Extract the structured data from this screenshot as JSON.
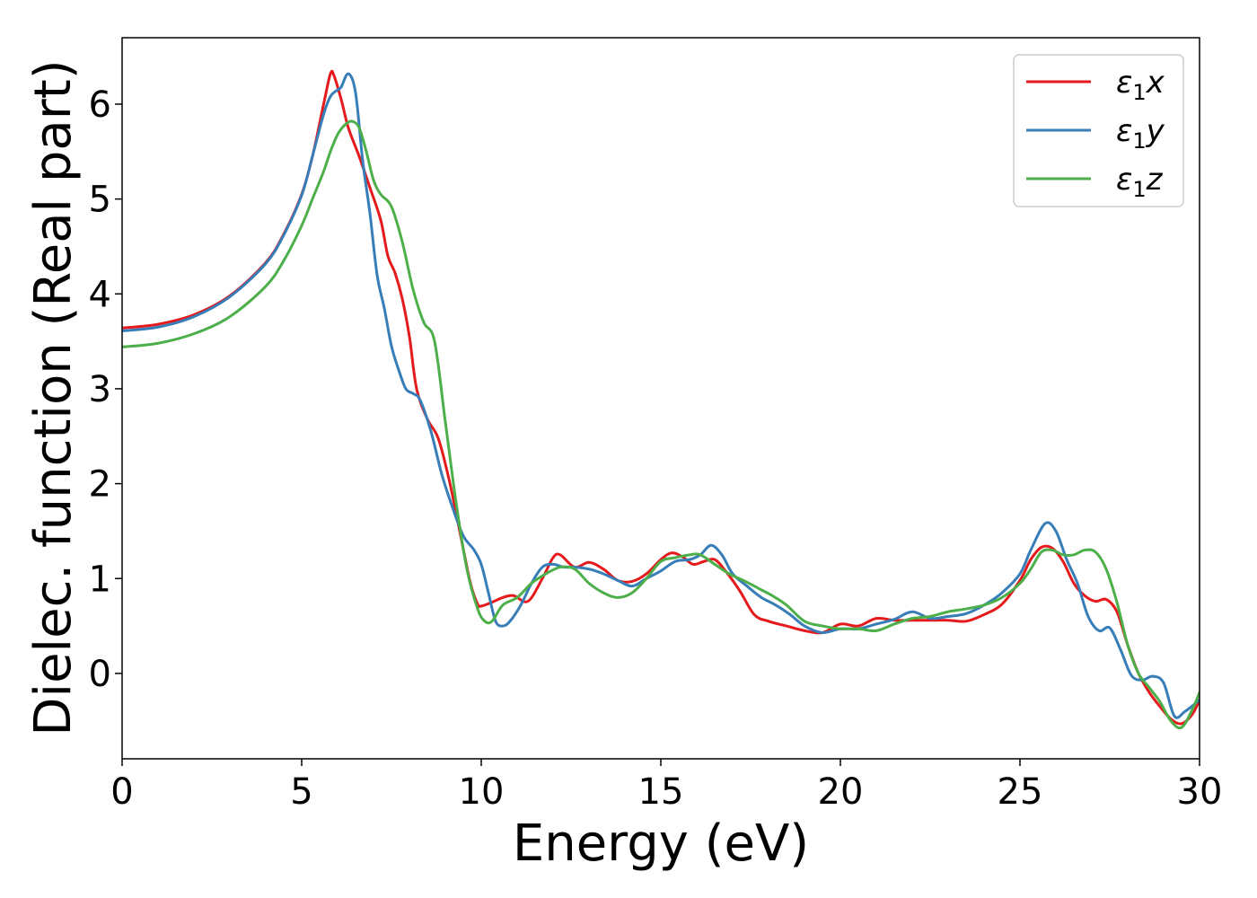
{
  "chart_data": {
    "type": "line",
    "title": "",
    "xlabel": "Energy (eV)",
    "ylabel": "Dielec. function (Real part)",
    "xlim": [
      0,
      30
    ],
    "ylim": [
      -0.9,
      6.7
    ],
    "xticks": [
      0,
      5,
      10,
      15,
      20,
      25,
      30
    ],
    "xtick_labels": [
      "0",
      "5",
      "10",
      "15",
      "20",
      "25",
      "30"
    ],
    "yticks": [
      0,
      1,
      2,
      3,
      4,
      5,
      6
    ],
    "ytick_labels": [
      "0",
      "1",
      "2",
      "3",
      "4",
      "5",
      "6"
    ],
    "grid": false,
    "legend_position": "top-right",
    "series": [
      {
        "name": "ε₁x",
        "legend_base": "ε",
        "legend_sub": "1",
        "legend_var": "x",
        "color": "#e41a1c",
        "x": [
          0,
          1,
          2,
          3,
          4,
          4.5,
          5,
          5.3,
          5.6,
          5.8,
          5.9,
          6.1,
          6.3,
          6.6,
          6.9,
          7.2,
          7.4,
          7.6,
          7.8,
          8.0,
          8.2,
          8.5,
          8.8,
          9.1,
          9.4,
          9.7,
          9.9,
          10.0,
          10.3,
          10.6,
          10.9,
          11.3,
          11.7,
          12.0,
          12.2,
          12.6,
          13.0,
          13.4,
          13.8,
          14.2,
          14.6,
          15.0,
          15.3,
          15.6,
          15.9,
          16.2,
          16.5,
          16.8,
          17.2,
          17.6,
          18.0,
          18.5,
          19.0,
          19.5,
          20.0,
          20.5,
          21.0,
          21.5,
          22.0,
          22.5,
          23.0,
          23.5,
          24.0,
          24.5,
          25.0,
          25.3,
          25.6,
          25.9,
          26.2,
          26.5,
          26.8,
          27.1,
          27.4,
          27.7,
          28.0,
          28.3,
          28.6,
          28.9,
          29.2,
          29.5,
          29.8,
          30.0
        ],
        "y": [
          3.64,
          3.68,
          3.78,
          3.98,
          4.33,
          4.63,
          5.05,
          5.45,
          5.98,
          6.32,
          6.3,
          6.05,
          5.75,
          5.45,
          5.12,
          4.78,
          4.4,
          4.22,
          3.95,
          3.55,
          3.0,
          2.68,
          2.48,
          2.05,
          1.5,
          0.95,
          0.73,
          0.71,
          0.75,
          0.8,
          0.82,
          0.76,
          1.0,
          1.22,
          1.25,
          1.12,
          1.17,
          1.1,
          0.98,
          0.97,
          1.05,
          1.2,
          1.27,
          1.23,
          1.15,
          1.18,
          1.2,
          1.08,
          0.87,
          0.62,
          0.55,
          0.5,
          0.45,
          0.43,
          0.52,
          0.5,
          0.58,
          0.56,
          0.56,
          0.56,
          0.56,
          0.55,
          0.62,
          0.73,
          0.98,
          1.2,
          1.33,
          1.32,
          1.18,
          0.95,
          0.82,
          0.76,
          0.78,
          0.65,
          0.3,
          0.0,
          -0.2,
          -0.35,
          -0.48,
          -0.53,
          -0.43,
          -0.28
        ]
      },
      {
        "name": "ε₁y",
        "legend_base": "ε",
        "legend_sub": "1",
        "legend_var": "y",
        "color": "#377eb8",
        "x": [
          0,
          1,
          2,
          3,
          4,
          4.5,
          5,
          5.3,
          5.6,
          5.8,
          6.0,
          6.1,
          6.3,
          6.5,
          6.7,
          6.9,
          7.1,
          7.3,
          7.5,
          7.7,
          7.9,
          8.1,
          8.3,
          8.6,
          8.9,
          9.2,
          9.5,
          9.8,
          10.0,
          10.2,
          10.4,
          10.6,
          10.8,
          11.1,
          11.4,
          11.7,
          12.0,
          12.3,
          12.6,
          13.0,
          13.4,
          13.8,
          14.2,
          14.6,
          15.0,
          15.4,
          15.8,
          16.1,
          16.4,
          16.7,
          17.0,
          17.4,
          17.8,
          18.2,
          18.6,
          19.0,
          19.5,
          20.0,
          20.5,
          21.0,
          21.5,
          22.0,
          22.5,
          23.0,
          23.5,
          24.0,
          24.5,
          25.0,
          25.3,
          25.7,
          26.0,
          26.3,
          26.6,
          26.9,
          27.2,
          27.5,
          27.8,
          28.1,
          28.4,
          28.7,
          29.0,
          29.3,
          29.6,
          30.0
        ],
        "y": [
          3.61,
          3.65,
          3.76,
          3.97,
          4.32,
          4.62,
          5.04,
          5.45,
          5.88,
          6.08,
          6.15,
          6.18,
          6.32,
          6.12,
          5.4,
          4.85,
          4.2,
          3.85,
          3.45,
          3.2,
          3.0,
          2.95,
          2.88,
          2.55,
          2.1,
          1.75,
          1.45,
          1.3,
          1.15,
          0.85,
          0.55,
          0.5,
          0.55,
          0.72,
          0.95,
          1.12,
          1.15,
          1.12,
          1.12,
          1.1,
          1.05,
          0.98,
          0.92,
          1.0,
          1.08,
          1.18,
          1.2,
          1.25,
          1.35,
          1.25,
          1.05,
          0.92,
          0.8,
          0.72,
          0.62,
          0.5,
          0.43,
          0.47,
          0.47,
          0.52,
          0.57,
          0.65,
          0.58,
          0.6,
          0.63,
          0.72,
          0.85,
          1.05,
          1.3,
          1.58,
          1.5,
          1.2,
          0.95,
          0.6,
          0.45,
          0.48,
          0.25,
          -0.02,
          -0.07,
          -0.03,
          -0.1,
          -0.45,
          -0.4,
          -0.28
        ]
      },
      {
        "name": "ε₁z",
        "legend_base": "ε",
        "legend_sub": "1",
        "legend_var": "z",
        "color": "#4daf4a",
        "x": [
          0,
          1,
          2,
          3,
          4,
          4.5,
          5,
          5.3,
          5.6,
          5.8,
          6.0,
          6.2,
          6.4,
          6.6,
          6.8,
          7.0,
          7.2,
          7.5,
          7.8,
          8.1,
          8.4,
          8.7,
          9.0,
          9.3,
          9.6,
          9.9,
          10.1,
          10.3,
          10.6,
          11.0,
          11.4,
          11.8,
          12.2,
          12.6,
          13.0,
          13.4,
          13.8,
          14.2,
          14.6,
          15.0,
          15.4,
          15.8,
          16.1,
          16.5,
          16.9,
          17.3,
          17.7,
          18.1,
          18.5,
          19.0,
          19.5,
          20.0,
          20.5,
          21.0,
          21.5,
          22.0,
          22.5,
          23.0,
          23.5,
          24.0,
          24.5,
          25.0,
          25.3,
          25.6,
          25.9,
          26.2,
          26.5,
          26.8,
          27.1,
          27.4,
          27.7,
          28.0,
          28.3,
          28.6,
          28.9,
          29.2,
          29.5,
          29.8,
          30.0
        ],
        "y": [
          3.44,
          3.48,
          3.58,
          3.76,
          4.08,
          4.35,
          4.72,
          5.0,
          5.28,
          5.5,
          5.68,
          5.78,
          5.82,
          5.75,
          5.5,
          5.2,
          5.05,
          4.92,
          4.55,
          4.05,
          3.7,
          3.5,
          2.65,
          1.8,
          1.1,
          0.68,
          0.55,
          0.55,
          0.72,
          0.8,
          0.95,
          1.05,
          1.12,
          1.1,
          0.95,
          0.85,
          0.8,
          0.85,
          1.0,
          1.18,
          1.22,
          1.25,
          1.25,
          1.15,
          1.05,
          0.98,
          0.9,
          0.82,
          0.72,
          0.55,
          0.5,
          0.47,
          0.47,
          0.45,
          0.52,
          0.58,
          0.6,
          0.65,
          0.68,
          0.72,
          0.8,
          0.95,
          1.1,
          1.28,
          1.3,
          1.25,
          1.25,
          1.3,
          1.28,
          1.1,
          0.75,
          0.3,
          0.0,
          -0.15,
          -0.3,
          -0.5,
          -0.57,
          -0.38,
          -0.2
        ]
      }
    ]
  }
}
